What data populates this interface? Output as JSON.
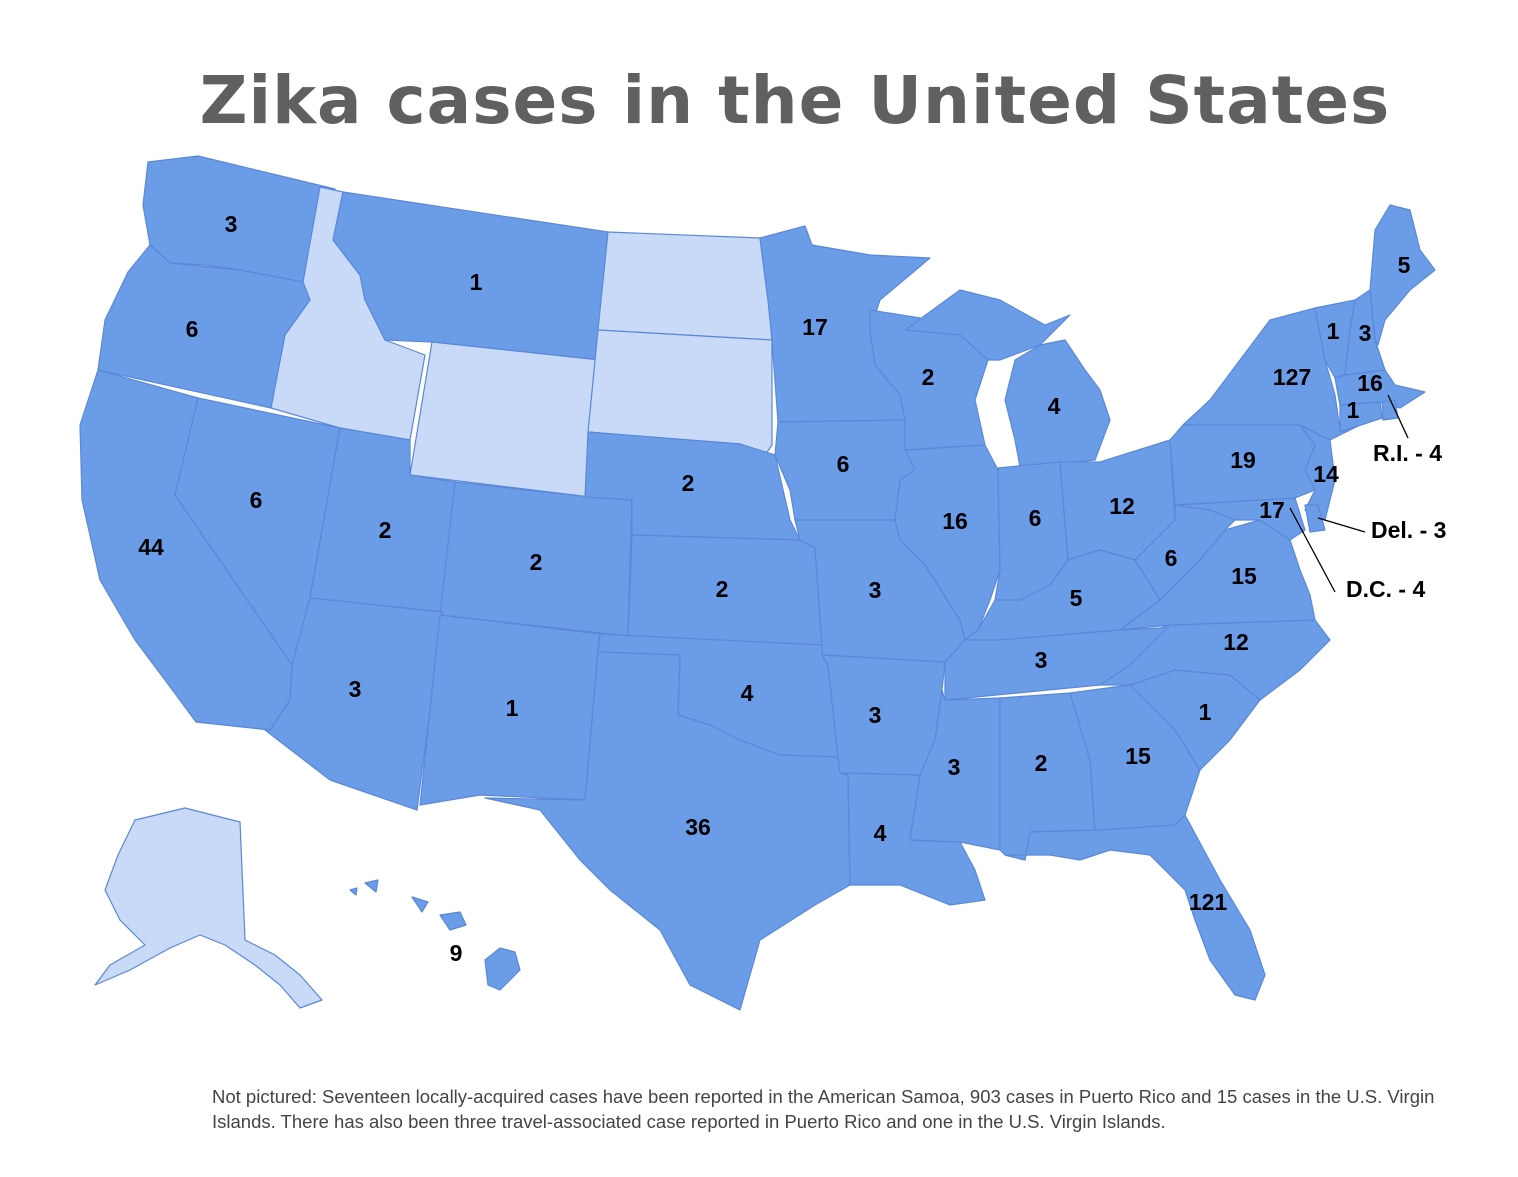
{
  "title": "Zika cases in the United States",
  "colors": {
    "reported": "#6b9ce8",
    "none": "#c8daf7",
    "border": "#5a88d8",
    "title": "#606060"
  },
  "states": {
    "WA": {
      "name": "Washington",
      "cases": "3"
    },
    "OR": {
      "name": "Oregon",
      "cases": "6"
    },
    "CA": {
      "name": "California",
      "cases": "44"
    },
    "NV": {
      "name": "Nevada",
      "cases": "6"
    },
    "ID": {
      "name": "Idaho",
      "cases": ""
    },
    "MT": {
      "name": "Montana",
      "cases": "1"
    },
    "WY": {
      "name": "Wyoming",
      "cases": ""
    },
    "UT": {
      "name": "Utah",
      "cases": "2"
    },
    "AZ": {
      "name": "Arizona",
      "cases": "3"
    },
    "CO": {
      "name": "Colorado",
      "cases": "2"
    },
    "NM": {
      "name": "New Mexico",
      "cases": "1"
    },
    "ND": {
      "name": "North Dakota",
      "cases": ""
    },
    "SD": {
      "name": "South Dakota",
      "cases": ""
    },
    "NE": {
      "name": "Nebraska",
      "cases": "2"
    },
    "KS": {
      "name": "Kansas",
      "cases": "2"
    },
    "OK": {
      "name": "Oklahoma",
      "cases": "4"
    },
    "TX": {
      "name": "Texas",
      "cases": "36"
    },
    "MN": {
      "name": "Minnesota",
      "cases": "17"
    },
    "IA": {
      "name": "Iowa",
      "cases": "6"
    },
    "MO": {
      "name": "Missouri",
      "cases": "3"
    },
    "AR": {
      "name": "Arkansas",
      "cases": "3"
    },
    "LA": {
      "name": "Louisiana",
      "cases": "4"
    },
    "WI": {
      "name": "Wisconsin",
      "cases": "2"
    },
    "IL": {
      "name": "Illinois",
      "cases": "16"
    },
    "MI": {
      "name": "Michigan",
      "cases": "4"
    },
    "IN": {
      "name": "Indiana",
      "cases": "6"
    },
    "OH": {
      "name": "Ohio",
      "cases": "12"
    },
    "KY": {
      "name": "Kentucky",
      "cases": "5"
    },
    "TN": {
      "name": "Tennessee",
      "cases": "3"
    },
    "MS": {
      "name": "Mississippi",
      "cases": "3"
    },
    "AL": {
      "name": "Alabama",
      "cases": "2"
    },
    "GA": {
      "name": "Georgia",
      "cases": "15"
    },
    "FL": {
      "name": "Florida",
      "cases": "121"
    },
    "SC": {
      "name": "South Carolina",
      "cases": "1"
    },
    "NC": {
      "name": "North Carolina",
      "cases": "12"
    },
    "VA": {
      "name": "Virginia",
      "cases": "15"
    },
    "WV": {
      "name": "West Virginia",
      "cases": "6"
    },
    "MD": {
      "name": "Maryland",
      "cases": "17"
    },
    "PA": {
      "name": "Pennsylvania",
      "cases": "19"
    },
    "NJ": {
      "name": "New Jersey",
      "cases": "14"
    },
    "NY": {
      "name": "New York",
      "cases": "127"
    },
    "VT": {
      "name": "Vermont",
      "cases": "1"
    },
    "NH": {
      "name": "New Hampshire",
      "cases": "3"
    },
    "ME": {
      "name": "Maine",
      "cases": "5"
    },
    "MA": {
      "name": "Massachusetts",
      "cases": "16"
    },
    "CT": {
      "name": "Connecticut",
      "cases": "1"
    },
    "AK": {
      "name": "Alaska",
      "cases": ""
    },
    "HI": {
      "name": "Hawaii",
      "cases": "9"
    }
  },
  "callouts": {
    "RI": "R.I. - 4",
    "DE": "Del. - 3",
    "DC": "D.C. - 4"
  },
  "footnote": "Not pictured: Seventeen locally-acquired cases have been reported in the American Samoa, 903 cases in Puerto Rico and 15 cases in the U.S. Virgin Islands. There has also been three travel-associated case reported in Puerto Rico and one in the U.S. Virgin Islands."
}
